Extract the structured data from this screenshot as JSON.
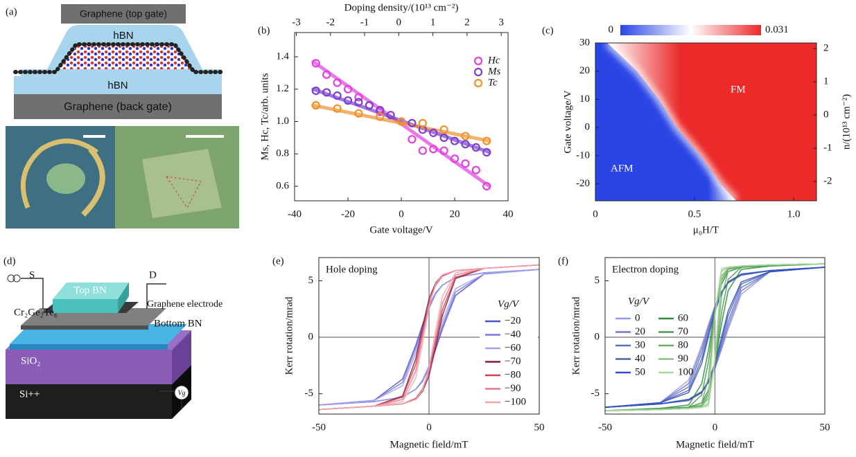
{
  "panel_a": {
    "label": "(a)",
    "top_gate": "Graphene (top gate)",
    "top_hbn": "hBN",
    "bottom_hbn": "hBN",
    "back_gate": "Graphene (back gate)"
  },
  "panel_d": {
    "label": "(d)",
    "source": "S",
    "drain": "D",
    "top_bn": "Top BN",
    "crystal": "Cr₂Ge₂Te₆",
    "electrode": "Graphene electrode",
    "bottom_bn": "Bottom BN",
    "oxide": "SiO₂",
    "substrate": "Si++",
    "gate": "Vg"
  },
  "chart_data": [
    {
      "type": "scatter",
      "panel": "(b)",
      "x_label": "Gate voltage/V",
      "x2_label": "Doping density/(10¹³ cm⁻²)",
      "y_label": "Ms, Hc, Tc/arb. units",
      "xlim": [
        -40,
        40
      ],
      "xticks": [
        -40,
        -20,
        0,
        20,
        40
      ],
      "x2lim": [
        -3.05,
        3.2
      ],
      "x2ticks": [
        -3,
        -2,
        -1,
        0,
        1,
        2,
        3
      ],
      "ylim": [
        0.51,
        1.55
      ],
      "yticks": [
        0.6,
        0.8,
        {
          "value": 1,
          "label": "1.0"
        },
        1.2,
        1.4
      ],
      "legend": "upper right",
      "series": [
        {
          "name": "Hc",
          "color": "#e23fe0",
          "x": [
            -32,
            -28,
            -24,
            -20,
            -16,
            -12,
            -8,
            4,
            8,
            12,
            16,
            20,
            24,
            28,
            32
          ],
          "values": [
            1.36,
            1.29,
            1.24,
            1.2,
            1.15,
            1.1,
            1.06,
            0.89,
            0.82,
            0.83,
            0.82,
            0.77,
            0.74,
            0.7,
            0.6
          ],
          "fit_x": [
            -33,
            33
          ],
          "fit_values": [
            1.37,
            0.6
          ]
        },
        {
          "name": "Ms",
          "color": "#7a3fd0",
          "x": [
            -32,
            -28,
            -24,
            -20,
            -16,
            -12,
            -8,
            -4,
            4,
            8,
            12,
            16,
            20,
            24,
            28,
            32
          ],
          "values": [
            1.19,
            1.18,
            1.16,
            1.13,
            1.12,
            1.1,
            1.07,
            1.04,
            0.99,
            0.95,
            0.93,
            0.9,
            0.88,
            0.86,
            0.84,
            0.81
          ],
          "fit_x": [
            -33,
            33
          ],
          "fit_values": [
            1.2,
            0.81
          ]
        },
        {
          "name": "Tc",
          "color": "#f0902a",
          "x": [
            -32,
            -24,
            -16,
            -8,
            0,
            8,
            16,
            24,
            32
          ],
          "values": [
            1.1,
            1.08,
            1.05,
            1.03,
            1.0,
            0.99,
            0.95,
            0.91,
            0.88
          ],
          "fit_x": [
            -33,
            33
          ],
          "fit_values": [
            1.1,
            0.88
          ]
        }
      ]
    },
    {
      "type": "heatmap",
      "panel": "(c)",
      "x_label": "μ₀H/T",
      "y_label": "Gate voltage/V",
      "y2_label": "n/(10¹³ cm⁻²)",
      "xlim": [
        0,
        1.115
      ],
      "xticks": [
        0,
        0.5,
        {
          "value": 1,
          "label": "1.0"
        }
      ],
      "ylim": [
        -26,
        30
      ],
      "yticks": [
        -20,
        -10,
        0,
        10,
        20,
        30
      ],
      "y2lim": [
        -2.58,
        2.17
      ],
      "y2ticks": [
        -2,
        -1,
        0,
        1,
        2
      ],
      "colorbar": [
        0,
        0.031
      ],
      "colors": [
        "#2a45e6",
        "#ffffff",
        "#ec2a2a"
      ],
      "phase_boundary": {
        "x": [
          0.06,
          0.21,
          0.32,
          0.41,
          0.53,
          0.63,
          0.71
        ],
        "y": [
          30,
          20,
          10,
          0,
          -10,
          -20,
          -26
        ]
      },
      "annotations": [
        "AFM",
        "FM"
      ]
    },
    {
      "type": "line",
      "panel": "(e)",
      "annotation": "Hole doping",
      "x_label": "Magnetic field/mT",
      "y_label": "Kerr rotation/mrad",
      "xlim": [
        -50,
        50
      ],
      "xticks": [
        -50,
        0,
        50
      ],
      "ylim": [
        -6.8,
        7.05
      ],
      "yticks": [
        -5,
        0,
        5
      ],
      "zero_lines": true,
      "legend_title": "Vg/V",
      "legend_columns": 1,
      "x": [
        -50,
        -25,
        -12,
        -6,
        -3,
        0,
        3,
        6,
        12,
        25,
        50
      ],
      "series": [
        {
          "name": "−20",
          "color": "#4f4fd2",
          "values": [
            -6.0,
            -5.7,
            -5.3,
            -4.6,
            -3.9,
            -2.7,
            -1.1,
            0.7,
            3.7,
            5.6,
            6.0
          ],
          "values_down": [
            -6.0,
            -5.6,
            -3.7,
            -0.7,
            1.1,
            2.7,
            3.9,
            4.6,
            5.3,
            5.7,
            6.0
          ]
        },
        {
          "name": "−40",
          "color": "#7878de",
          "values": [
            -6.0,
            -5.7,
            -5.3,
            -4.6,
            -3.9,
            -2.6,
            -0.9,
            1.0,
            4.0,
            5.6,
            6.0
          ],
          "values_down": [
            -6.0,
            -5.6,
            -4.0,
            -1.0,
            0.9,
            2.6,
            3.9,
            4.6,
            5.3,
            5.7,
            6.0
          ]
        },
        {
          "name": "−60",
          "color": "#a2a2ea",
          "values": [
            -6.0,
            -5.7,
            -5.3,
            -4.6,
            -3.8,
            -2.5,
            -0.6,
            1.4,
            4.3,
            5.6,
            6.0
          ],
          "values_down": [
            -6.0,
            -5.6,
            -4.3,
            -1.4,
            0.6,
            2.5,
            3.8,
            4.6,
            5.3,
            5.7,
            6.0
          ]
        },
        {
          "name": "−70",
          "color": "#8b1a3a",
          "values": [
            -6.4,
            -6.1,
            -5.9,
            -5.5,
            -4.8,
            -3.4,
            -0.9,
            1.9,
            5.2,
            6.1,
            6.4
          ],
          "values_down": [
            -6.4,
            -6.1,
            -5.2,
            -1.9,
            0.9,
            3.4,
            4.8,
            5.5,
            5.9,
            6.1,
            6.4
          ]
        },
        {
          "name": "−80",
          "color": "#d04050",
          "values": [
            -6.4,
            -6.1,
            -5.9,
            -5.4,
            -4.6,
            -3.0,
            -0.4,
            2.4,
            5.3,
            6.1,
            6.4
          ],
          "values_down": [
            -6.4,
            -6.1,
            -5.3,
            -2.4,
            0.4,
            3.0,
            4.6,
            5.4,
            5.9,
            6.1,
            6.4
          ]
        },
        {
          "name": "−90",
          "color": "#e07a8a",
          "values": [
            -6.4,
            -6.1,
            -5.9,
            -5.5,
            -4.7,
            -2.9,
            0.0,
            3.0,
            5.5,
            6.1,
            6.4
          ],
          "values_down": [
            -6.4,
            -6.1,
            -5.5,
            -3.0,
            0.0,
            2.9,
            4.7,
            5.5,
            5.9,
            6.1,
            6.4
          ]
        },
        {
          "name": "−100",
          "color": "#f0a8b0",
          "values": [
            -6.4,
            -6.1,
            -5.9,
            -5.5,
            -4.7,
            -2.7,
            0.6,
            3.6,
            5.7,
            6.1,
            6.4
          ],
          "values_down": [
            -6.4,
            -6.1,
            -5.7,
            -3.6,
            -0.6,
            2.7,
            4.7,
            5.5,
            5.9,
            6.1,
            6.4
          ]
        }
      ]
    },
    {
      "type": "line",
      "panel": "(f)",
      "annotation": "Electron doping",
      "x_label": "Magnetic field/mT",
      "y_label": "Kerr rotation/mrad",
      "xlim": [
        -50,
        50
      ],
      "xticks": [
        -50,
        0,
        50
      ],
      "ylim": [
        -6.8,
        7.05
      ],
      "yticks": [
        -5,
        0,
        5
      ],
      "zero_lines": true,
      "legend_title": "Vg/V",
      "legend_columns": 2,
      "x": [
        -50,
        -25,
        -12,
        -6,
        -3,
        0,
        3,
        6,
        12,
        25,
        50
      ],
      "series": [
        {
          "name": "0",
          "color": "#9a9ae4",
          "values": [
            -6.2,
            -5.9,
            -5.5,
            -4.8,
            -4.0,
            -2.8,
            -1.1,
            0.7,
            3.8,
            5.8,
            6.2
          ],
          "values_down": [
            -6.2,
            -5.8,
            -3.8,
            -0.7,
            1.1,
            2.8,
            4.0,
            4.8,
            5.5,
            5.9,
            6.2
          ]
        },
        {
          "name": "20",
          "color": "#7474d2",
          "values": [
            -6.2,
            -5.9,
            -5.5,
            -4.8,
            -4.0,
            -2.7,
            -0.9,
            1.0,
            4.1,
            5.8,
            6.2
          ],
          "values_down": [
            -6.2,
            -5.8,
            -4.1,
            -1.0,
            0.9,
            2.7,
            4.0,
            4.8,
            5.5,
            5.9,
            6.2
          ]
        },
        {
          "name": "30",
          "color": "#5a72b8",
          "values": [
            -6.2,
            -5.9,
            -5.5,
            -4.8,
            -3.9,
            -2.6,
            -0.6,
            1.4,
            4.4,
            5.8,
            6.2
          ],
          "values_down": [
            -6.2,
            -5.8,
            -4.4,
            -1.4,
            0.6,
            2.6,
            3.9,
            4.8,
            5.5,
            5.9,
            6.2
          ]
        },
        {
          "name": "40",
          "color": "#4a62a8",
          "values": [
            -6.2,
            -5.9,
            -5.5,
            -4.9,
            -4.0,
            -2.4,
            -0.3,
            1.9,
            4.7,
            5.8,
            6.2
          ],
          "values_down": [
            -6.2,
            -5.8,
            -4.7,
            -1.9,
            0.3,
            2.4,
            4.0,
            4.9,
            5.5,
            5.9,
            6.2
          ]
        },
        {
          "name": "50",
          "color": "#3050c8",
          "values": [
            -6.2,
            -5.9,
            -5.6,
            -4.9,
            -3.9,
            -2.3,
            0.0,
            2.3,
            4.9,
            5.8,
            6.2
          ],
          "values_down": [
            -6.2,
            -5.8,
            -4.9,
            -2.3,
            0.0,
            2.3,
            3.9,
            4.9,
            5.6,
            5.9,
            6.2
          ]
        },
        {
          "name": "60",
          "color": "#2e8b3e",
          "values": [
            -6.5,
            -6.4,
            -6.2,
            -5.8,
            -4.7,
            -2.4,
            1.2,
            4.1,
            6.0,
            6.3,
            6.5
          ],
          "values_down": [
            -6.5,
            -6.3,
            -6.0,
            -4.1,
            -1.2,
            2.4,
            4.7,
            5.8,
            6.2,
            6.4,
            6.5
          ]
        },
        {
          "name": "70",
          "color": "#4a9a50",
          "values": [
            -6.5,
            -6.4,
            -6.3,
            -6.0,
            -5.0,
            -2.2,
            2.2,
            5.1,
            6.2,
            6.3,
            6.5
          ],
          "values_down": [
            -6.5,
            -6.3,
            -6.2,
            -5.1,
            -2.2,
            2.2,
            5.0,
            6.0,
            6.3,
            6.4,
            6.5
          ]
        },
        {
          "name": "80",
          "color": "#6aaa68",
          "values": [
            -6.5,
            -6.4,
            -6.3,
            -6.1,
            -5.4,
            -2.0,
            3.6,
            5.8,
            6.3,
            6.4,
            6.5
          ],
          "values_down": [
            -6.5,
            -6.4,
            -6.3,
            -5.8,
            -3.6,
            2.0,
            5.4,
            6.1,
            6.3,
            6.4,
            6.5
          ]
        },
        {
          "name": "90",
          "color": "#8cc080",
          "values": [
            -6.5,
            -6.4,
            -6.3,
            -6.2,
            -5.9,
            -2.1,
            5.1,
            6.2,
            6.3,
            6.4,
            6.5
          ],
          "values_down": [
            -6.5,
            -6.4,
            -6.3,
            -6.2,
            -5.1,
            2.1,
            5.9,
            6.2,
            6.3,
            6.4,
            6.5
          ]
        },
        {
          "name": "100",
          "color": "#a8d89a",
          "values": [
            -6.5,
            -6.4,
            -6.3,
            -6.2,
            -6.1,
            -2.0,
            5.8,
            6.2,
            6.3,
            6.4,
            6.5
          ],
          "values_down": [
            -6.5,
            -6.4,
            -6.3,
            -6.2,
            -5.8,
            2.0,
            6.1,
            6.2,
            6.3,
            6.4,
            6.5
          ]
        }
      ]
    }
  ]
}
